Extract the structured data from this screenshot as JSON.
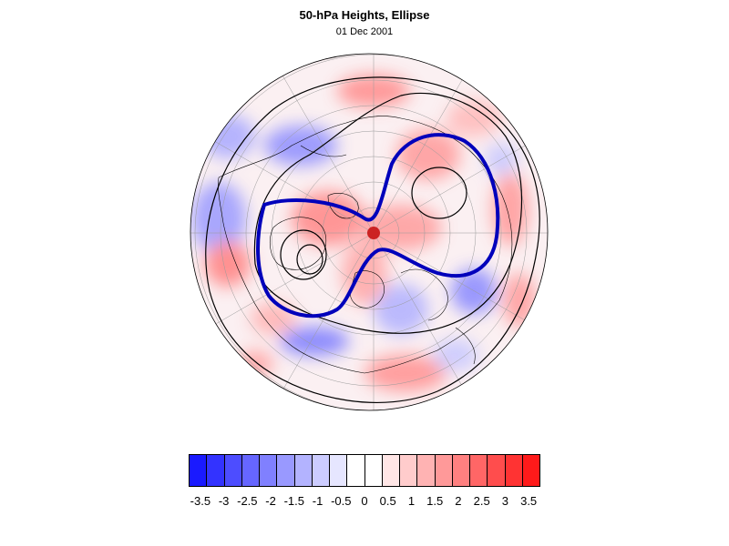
{
  "title": "50-hPa Heights, Ellipse",
  "subtitle": "01 Dec 2001",
  "colorbar": {
    "colors": [
      "#1a1aff",
      "#3333ff",
      "#4d4dff",
      "#6666ff",
      "#8080ff",
      "#9999ff",
      "#b3b3ff",
      "#ccccff",
      "#e6e6ff",
      "#ffffff",
      "#ffffff",
      "#ffe6e6",
      "#ffcccc",
      "#ffb3b3",
      "#ff9999",
      "#ff8080",
      "#ff6666",
      "#ff4d4d",
      "#ff3333",
      "#ff1a1a"
    ],
    "labels": [
      "-3.5",
      "-3",
      "-2.5",
      "-2",
      "-1.5",
      "-1",
      "-0.5",
      "0",
      "0.5",
      "1",
      "1.5",
      "2",
      "2.5",
      "3",
      "3.5"
    ]
  },
  "map": {
    "projection": "north-polar-stereographic",
    "ellipse_color": "#0000bb",
    "center_marker_color": "#cc2222"
  }
}
